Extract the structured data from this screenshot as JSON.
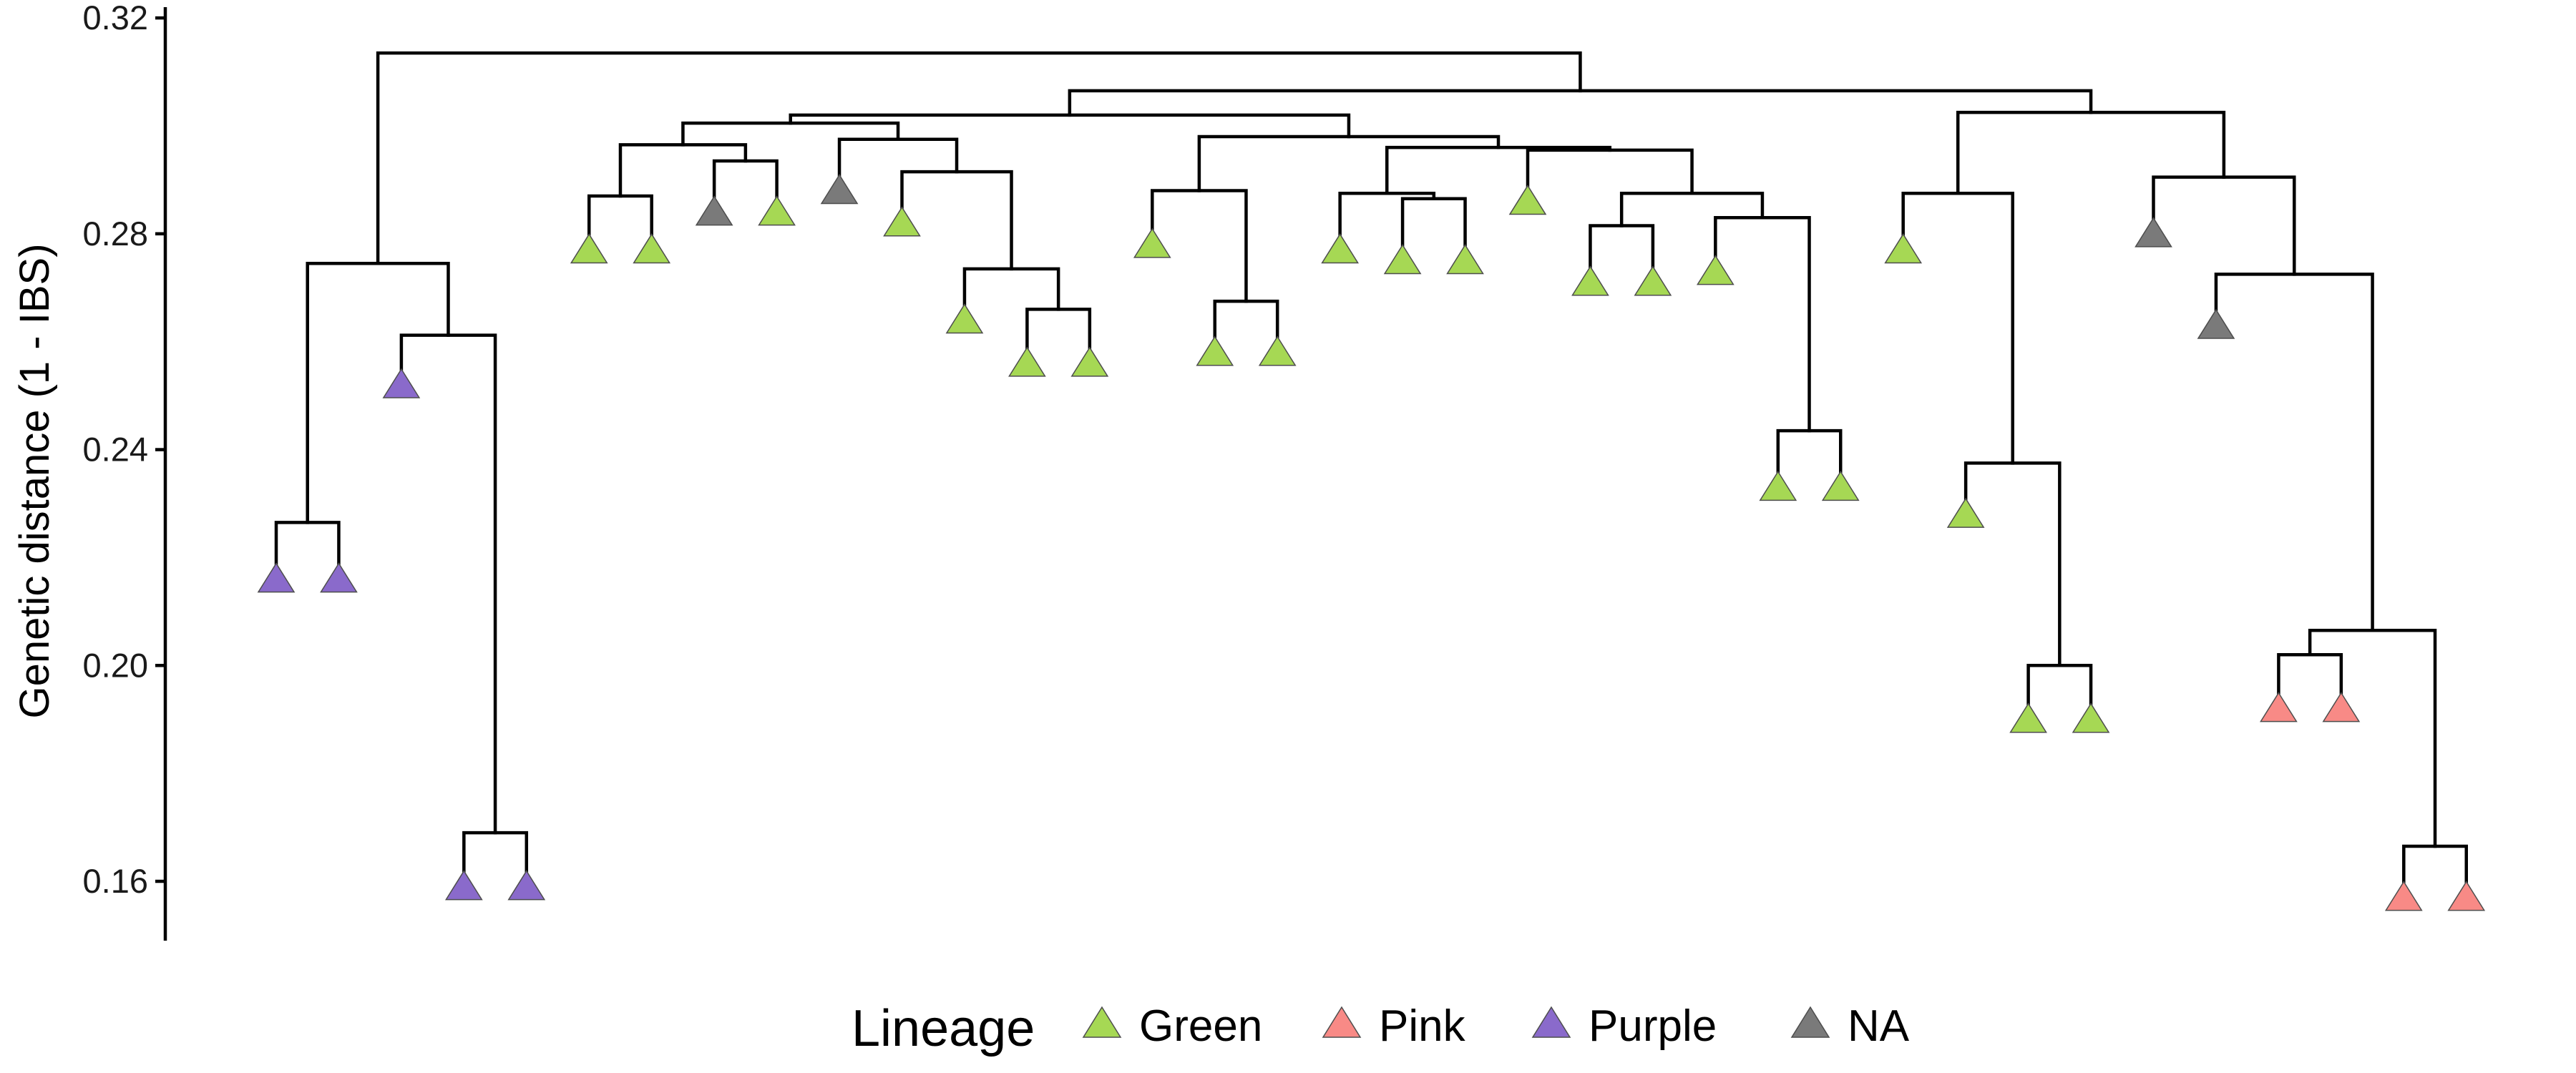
{
  "chart_data": {
    "type": "dendrogram",
    "xlabel": "",
    "ylabel": "Genetic distance (1 - IBS)",
    "ylim": [
      0.149,
      0.322
    ],
    "y_ticks": [
      0.16,
      0.2,
      0.24,
      0.28,
      0.32
    ],
    "y_tick_labels": [
      "0.16",
      "0.20",
      "0.24",
      "0.28",
      "0.32"
    ],
    "grid": false,
    "legend": {
      "title": "Lineage",
      "placement": "bottom",
      "entries": [
        {
          "label": "Green",
          "color": "#a6d854"
        },
        {
          "label": "Pink",
          "color": "#f88a86"
        },
        {
          "label": "Purple",
          "color": "#8a6acb"
        },
        {
          "label": "NA",
          "color": "#7a7a7a"
        }
      ]
    },
    "leaves": [
      {
        "lineage": "Purple",
        "height": 0.216
      },
      {
        "lineage": "Purple",
        "height": 0.216
      },
      {
        "lineage": "Purple",
        "height": 0.252
      },
      {
        "lineage": "Purple",
        "height": 0.159
      },
      {
        "lineage": "Purple",
        "height": 0.159
      },
      {
        "lineage": "Green",
        "height": 0.277
      },
      {
        "lineage": "Green",
        "height": 0.277
      },
      {
        "lineage": "NA",
        "height": 0.284
      },
      {
        "lineage": "Green",
        "height": 0.284
      },
      {
        "lineage": "NA",
        "height": 0.288
      },
      {
        "lineage": "Green",
        "height": 0.282
      },
      {
        "lineage": "Green",
        "height": 0.264
      },
      {
        "lineage": "Green",
        "height": 0.256
      },
      {
        "lineage": "Green",
        "height": 0.256
      },
      {
        "lineage": "Green",
        "height": 0.278
      },
      {
        "lineage": "Green",
        "height": 0.258
      },
      {
        "lineage": "Green",
        "height": 0.258
      },
      {
        "lineage": "Green",
        "height": 0.277
      },
      {
        "lineage": "Green",
        "height": 0.275
      },
      {
        "lineage": "Green",
        "height": 0.275
      },
      {
        "lineage": "Green",
        "height": 0.286
      },
      {
        "lineage": "Green",
        "height": 0.271
      },
      {
        "lineage": "Green",
        "height": 0.271
      },
      {
        "lineage": "Green",
        "height": 0.273
      },
      {
        "lineage": "Green",
        "height": 0.233
      },
      {
        "lineage": "Green",
        "height": 0.233
      },
      {
        "lineage": "Green",
        "height": 0.277
      },
      {
        "lineage": "Green",
        "height": 0.228
      },
      {
        "lineage": "Green",
        "height": 0.19
      },
      {
        "lineage": "Green",
        "height": 0.19
      },
      {
        "lineage": "NA",
        "height": 0.28
      },
      {
        "lineage": "NA",
        "height": 0.263
      },
      {
        "lineage": "Pink",
        "height": 0.192
      },
      {
        "lineage": "Pink",
        "height": 0.192
      },
      {
        "lineage": "Pink",
        "height": 0.157
      },
      {
        "lineage": "Pink",
        "height": 0.157
      }
    ],
    "merges": [
      {
        "id": "n1",
        "children": [
          "L0",
          "L1"
        ],
        "height": 0.2265
      },
      {
        "id": "n2",
        "children": [
          "L3",
          "L4"
        ],
        "height": 0.169
      },
      {
        "id": "n3",
        "children": [
          "L2",
          "n2"
        ],
        "height": 0.2612
      },
      {
        "id": "n4",
        "children": [
          "n1",
          "n3"
        ],
        "height": 0.2745
      },
      {
        "id": "n5",
        "children": [
          "L5",
          "L6"
        ],
        "height": 0.287
      },
      {
        "id": "n6",
        "children": [
          "L7",
          "L8"
        ],
        "height": 0.2935
      },
      {
        "id": "n7",
        "children": [
          "n5",
          "n6"
        ],
        "height": 0.2965
      },
      {
        "id": "n8",
        "children": [
          "L12",
          "L13"
        ],
        "height": 0.266
      },
      {
        "id": "n9",
        "children": [
          "L11",
          "n8"
        ],
        "height": 0.2735
      },
      {
        "id": "n10",
        "children": [
          "L10",
          "n9"
        ],
        "height": 0.2915
      },
      {
        "id": "n11",
        "children": [
          "L9",
          "n10"
        ],
        "height": 0.2975
      },
      {
        "id": "n12",
        "children": [
          "n7",
          "n11"
        ],
        "height": 0.3005
      },
      {
        "id": "n13",
        "children": [
          "L15",
          "L16"
        ],
        "height": 0.2675
      },
      {
        "id": "n14",
        "children": [
          "L14",
          "n13"
        ],
        "height": 0.288
      },
      {
        "id": "n15",
        "children": [
          "L18",
          "L19"
        ],
        "height": 0.2865
      },
      {
        "id": "n16",
        "children": [
          "L17",
          "n15"
        ],
        "height": 0.2875
      },
      {
        "id": "n17",
        "children": [
          "L21",
          "L22"
        ],
        "height": 0.2815
      },
      {
        "id": "n18",
        "children": [
          "L24",
          "L25"
        ],
        "height": 0.2435
      },
      {
        "id": "n19",
        "children": [
          "L23",
          "n18"
        ],
        "height": 0.283
      },
      {
        "id": "n20",
        "children": [
          "n17",
          "n19"
        ],
        "height": 0.2875
      },
      {
        "id": "n21",
        "children": [
          "L20",
          "n20"
        ],
        "height": 0.2955
      },
      {
        "id": "n22",
        "children": [
          "n16",
          "n21"
        ],
        "height": 0.296
      },
      {
        "id": "n23",
        "children": [
          "n14",
          "n22"
        ],
        "height": 0.298
      },
      {
        "id": "n24",
        "children": [
          "n12",
          "n23"
        ],
        "height": 0.302
      },
      {
        "id": "n25",
        "children": [
          "L28",
          "L29"
        ],
        "height": 0.2
      },
      {
        "id": "n26",
        "children": [
          "L27",
          "n25"
        ],
        "height": 0.2375
      },
      {
        "id": "n27",
        "children": [
          "L26",
          "n26"
        ],
        "height": 0.2875
      },
      {
        "id": "n28",
        "children": [
          "L32",
          "L33"
        ],
        "height": 0.202
      },
      {
        "id": "n29",
        "children": [
          "L34",
          "L35"
        ],
        "height": 0.1665
      },
      {
        "id": "n30",
        "children": [
          "n29",
          "n28"
        ],
        "height": 0.2065
      },
      {
        "id": "n31",
        "children": [
          "L31",
          "n30"
        ],
        "height": 0.2725
      },
      {
        "id": "n32",
        "children": [
          "L30",
          "n31"
        ],
        "height": 0.2905
      },
      {
        "id": "n33",
        "children": [
          "n27",
          "n32"
        ],
        "height": 0.3025
      },
      {
        "id": "n34",
        "children": [
          "n24",
          "n33"
        ],
        "height": 0.3065
      },
      {
        "id": "n35",
        "children": [
          "n4",
          "n34"
        ],
        "height": 0.3135
      }
    ]
  }
}
